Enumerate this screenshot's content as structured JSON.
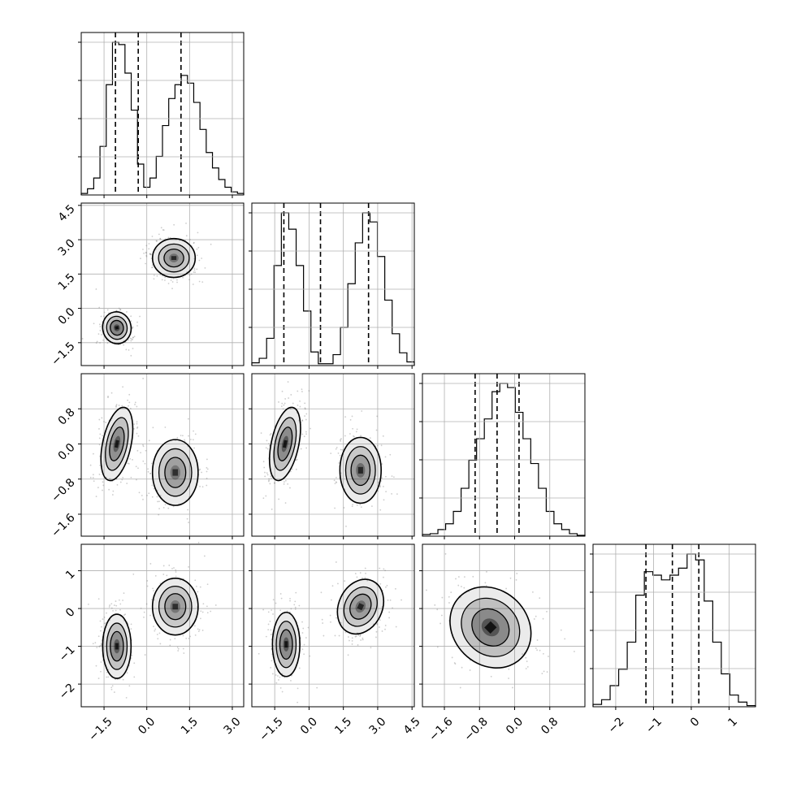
{
  "chart_data": {
    "type": "corner",
    "colors": {
      "line": "#000000",
      "grid": "#b0b0b0",
      "points": "#707070",
      "shade": "#000000"
    },
    "quantile_line_style": "dashed",
    "grid": true,
    "parameters": [
      {
        "index": 0,
        "range": [
          -2.3,
          3.4
        ],
        "ticks": [
          -1.5,
          0.0,
          1.5,
          3.0
        ],
        "tick_labels": [
          "−1.5",
          "0.0",
          "1.5",
          "3.0"
        ],
        "quantiles": [
          -1.1,
          -0.3,
          1.2
        ]
      },
      {
        "index": 1,
        "range": [
          -2.5,
          4.6
        ],
        "ticks": [
          -1.5,
          0.0,
          1.5,
          3.0,
          4.5
        ],
        "tick_labels": [
          "−1.5",
          "0.0",
          "1.5",
          "3.0",
          "4.5"
        ],
        "quantiles": [
          -1.1,
          0.5,
          2.6
        ]
      },
      {
        "index": 2,
        "range": [
          -2.1,
          1.6
        ],
        "ticks": [
          -1.6,
          -0.8,
          0.0,
          0.8
        ],
        "tick_labels": [
          "−1.6",
          "−0.8",
          "0.0",
          "0.8"
        ],
        "quantiles": [
          -0.9,
          -0.4,
          0.1
        ]
      },
      {
        "index": 3,
        "range": [
          -2.6,
          1.7
        ],
        "ticks": [
          -2,
          -1,
          0,
          1
        ],
        "tick_labels": [
          "−2",
          "−1",
          "0",
          "1"
        ],
        "quantiles": [
          -1.2,
          -0.5,
          0.2
        ]
      }
    ],
    "histograms": [
      {
        "param": 0,
        "counts": [
          2,
          8,
          22,
          63,
          143,
          198,
          195,
          158,
          110,
          40,
          10,
          22,
          50,
          90,
          125,
          143,
          155,
          145,
          120,
          85,
          55,
          35,
          20,
          10,
          4,
          2
        ]
      },
      {
        "param": 1,
        "counts": [
          3,
          8,
          30,
          110,
          168,
          150,
          110,
          60,
          15,
          2,
          2,
          12,
          42,
          90,
          135,
          168,
          158,
          120,
          72,
          35,
          14,
          4
        ]
      },
      {
        "param": 2,
        "counts": [
          2,
          3,
          8,
          15,
          30,
          58,
          92,
          118,
          142,
          175,
          185,
          180,
          150,
          118,
          88,
          58,
          30,
          15,
          8,
          3,
          1
        ]
      },
      {
        "param": 3,
        "counts": [
          2,
          6,
          18,
          32,
          55,
          95,
          115,
          112,
          108,
          112,
          118,
          130,
          125,
          90,
          55,
          28,
          10,
          4,
          1
        ]
      }
    ],
    "pairs": [
      {
        "x_param": 0,
        "y_param": 1,
        "clusters": [
          {
            "center": [
              -1.05,
              -0.85
            ],
            "size": [
              0.5,
              0.7
            ],
            "angle": 10,
            "peak": 0.9
          },
          {
            "center": [
              0.95,
              2.2
            ],
            "size": [
              0.75,
              0.85
            ],
            "angle": 0,
            "peak": 0.55
          }
        ]
      },
      {
        "x_param": 0,
        "y_param": 2,
        "clusters": [
          {
            "center": [
              -1.05,
              0.0
            ],
            "size": [
              0.5,
              0.85
            ],
            "angle": -12,
            "peak": 0.75
          },
          {
            "center": [
              1.0,
              -0.65
            ],
            "size": [
              0.8,
              0.75
            ],
            "angle": 0,
            "peak": 0.5
          }
        ]
      },
      {
        "x_param": 0,
        "y_param": 3,
        "clusters": [
          {
            "center": [
              -1.05,
              -1.0
            ],
            "size": [
              0.5,
              0.85
            ],
            "angle": 0,
            "peak": 0.75
          },
          {
            "center": [
              1.0,
              0.05
            ],
            "size": [
              0.8,
              0.75
            ],
            "angle": 0,
            "peak": 0.5
          }
        ]
      },
      {
        "x_param": 1,
        "y_param": 2,
        "clusters": [
          {
            "center": [
              -1.05,
              0.0
            ],
            "size": [
              0.6,
              0.85
            ],
            "angle": -12,
            "peak": 0.8
          },
          {
            "center": [
              2.25,
              -0.6
            ],
            "size": [
              0.9,
              0.75
            ],
            "angle": 0,
            "peak": 0.6
          }
        ]
      },
      {
        "x_param": 1,
        "y_param": 3,
        "clusters": [
          {
            "center": [
              -1.0,
              -0.95
            ],
            "size": [
              0.6,
              0.85
            ],
            "angle": 0,
            "peak": 0.8
          },
          {
            "center": [
              2.25,
              0.05
            ],
            "size": [
              0.95,
              0.75
            ],
            "angle": -25,
            "peak": 0.6
          }
        ]
      },
      {
        "x_param": 2,
        "y_param": 3,
        "clusters": [
          {
            "center": [
              -0.55,
              -0.5
            ],
            "size": [
              0.85,
              1.15
            ],
            "angle": 45,
            "peak": 0.85
          }
        ]
      }
    ]
  }
}
